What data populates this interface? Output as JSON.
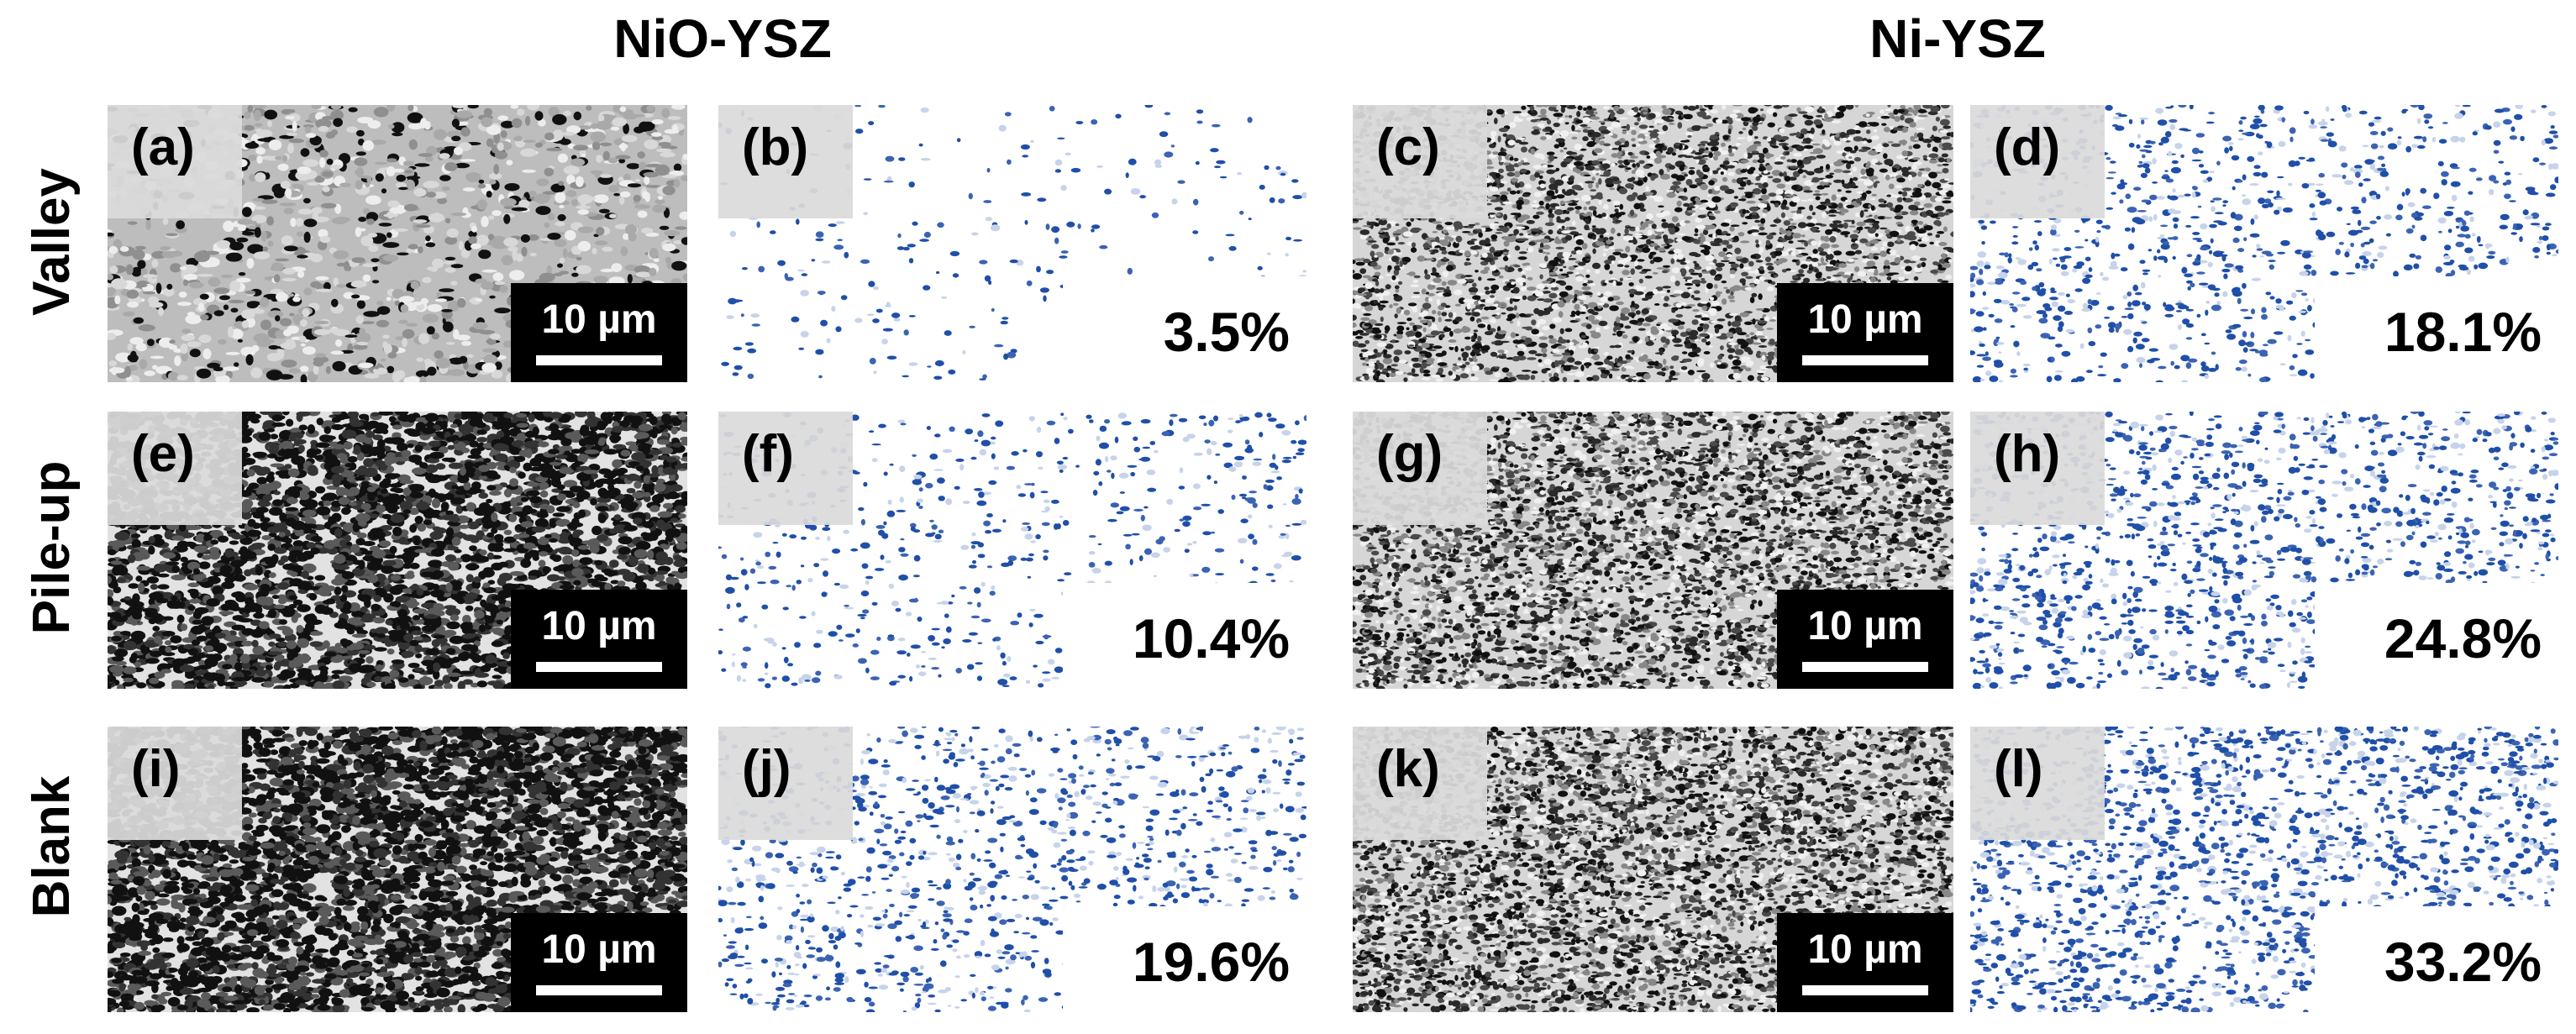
{
  "columns": {
    "left": "NiO-YSZ",
    "right": "Ni-YSZ"
  },
  "rows": [
    "Valley",
    "Pile-up",
    "Blank"
  ],
  "scale_bar": "10 µm",
  "panels": [
    {
      "label": "(a)",
      "kind": "sem",
      "variant": "nio",
      "density": 0.06
    },
    {
      "label": "(b)",
      "kind": "porosity",
      "value": "3.5%",
      "density": 0.035
    },
    {
      "label": "(c)",
      "kind": "sem",
      "variant": "ni",
      "density": 0.45
    },
    {
      "label": "(d)",
      "kind": "porosity",
      "value": "18.1%",
      "density": 0.18
    },
    {
      "label": "(e)",
      "kind": "sem",
      "variant": "nio",
      "density": 0.42
    },
    {
      "label": "(f)",
      "kind": "porosity",
      "value": "10.4%",
      "density": 0.104
    },
    {
      "label": "(g)",
      "kind": "sem",
      "variant": "ni",
      "density": 0.5
    },
    {
      "label": "(h)",
      "kind": "porosity",
      "value": "24.8%",
      "density": 0.248
    },
    {
      "label": "(i)",
      "kind": "sem",
      "variant": "nio",
      "density": 0.48
    },
    {
      "label": "(j)",
      "kind": "porosity",
      "value": "19.6%",
      "density": 0.196
    },
    {
      "label": "(k)",
      "kind": "sem",
      "variant": "ni",
      "density": 0.55
    },
    {
      "label": "(l)",
      "kind": "porosity",
      "value": "33.2%",
      "density": 0.332
    }
  ],
  "colors": {
    "pore_blue": "#1f4fa8",
    "light_blue": "#c6d3ea",
    "sem_dark": "#111111",
    "sem_light": "#e2e2e2"
  }
}
